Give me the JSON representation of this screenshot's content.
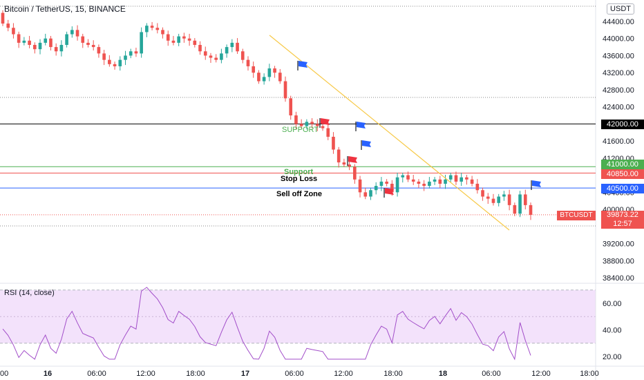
{
  "header": {
    "title": "Bitcoin / TetherUS, 15, BINANCE",
    "currency_button": "USDT"
  },
  "price_axis": {
    "ticks": [
      "44400.00",
      "44000.00",
      "43600.00",
      "43200.00",
      "42800.00",
      "42400.00",
      "41600.00",
      "41200.00",
      "40400.00",
      "40000.00",
      "39200.00",
      "38800.00",
      "38400.00"
    ]
  },
  "time_axis": {
    "ticks": [
      "00",
      "16",
      "06:00",
      "12:00",
      "18:00",
      "17",
      "06:00",
      "12:00",
      "18:00",
      "18",
      "06:00",
      "12:00",
      "18:00"
    ]
  },
  "levels": {
    "line_42000": {
      "price": 42000,
      "label": "42000.00",
      "color": "#000000"
    },
    "line_41000": {
      "price": 41000,
      "label": "41000.00",
      "color": "#4caf50"
    },
    "line_40850": {
      "price": 40850,
      "label": "40850.00",
      "color": "#ef5350"
    },
    "line_40500": {
      "price": 40500,
      "label": "40500.00",
      "color": "#2962ff"
    }
  },
  "current": {
    "symbol": "BTCUSDT",
    "price": "39873.22",
    "countdown": "12:57",
    "price_value": 39873.22
  },
  "annotations": {
    "support_upper": "SUPPORT",
    "support_lower": "Support",
    "stop_loss": "Stop Loss",
    "sell_off_zone": "Sell off Zone"
  },
  "rsi": {
    "label": "RSI (14, close)",
    "ticks": [
      "60.00",
      "40.00",
      "20.00"
    ],
    "upper_band": 70,
    "lower_band": 30
  },
  "colors": {
    "up": "#26a69a",
    "down": "#ef5350",
    "trendline": "#f7c948",
    "rsi_line": "#a24ec9",
    "rsi_band": "#f3e2fb",
    "flag_blue": "#2962ff",
    "flag_red": "#ef3340"
  },
  "chart_data": {
    "type": "candlestick",
    "symbol": "BTCUSDT",
    "interval": "15",
    "ylim": [
      38200,
      44600
    ],
    "series_close": [
      44350,
      44250,
      44100,
      43900,
      43950,
      43850,
      43750,
      43900,
      44000,
      43800,
      43700,
      43850,
      44100,
      44200,
      44050,
      43900,
      43850,
      43800,
      43650,
      43500,
      43400,
      43350,
      43500,
      43600,
      43700,
      43650,
      44150,
      44300,
      44250,
      44200,
      44100,
      43950,
      43900,
      44050,
      44000,
      43950,
      43850,
      43700,
      43600,
      43550,
      43500,
      43650,
      43800,
      43900,
      43700,
      43500,
      43350,
      43200,
      43000,
      43100,
      43300,
      43200,
      43000,
      42600,
      42200,
      42000,
      41950,
      42050,
      42000,
      41950,
      41900,
      41700,
      41400,
      41100,
      41050,
      41000,
      40700,
      40400,
      40300,
      40450,
      40550,
      40650,
      40600,
      40400,
      40750,
      40800,
      40700,
      40650,
      40600,
      40550,
      40650,
      40700,
      40600,
      40700,
      40800,
      40650,
      40750,
      40700,
      40600,
      40450,
      40300,
      40250,
      40150,
      40300,
      40350,
      40100,
      39900,
      40350,
      40100,
      39873
    ]
  }
}
